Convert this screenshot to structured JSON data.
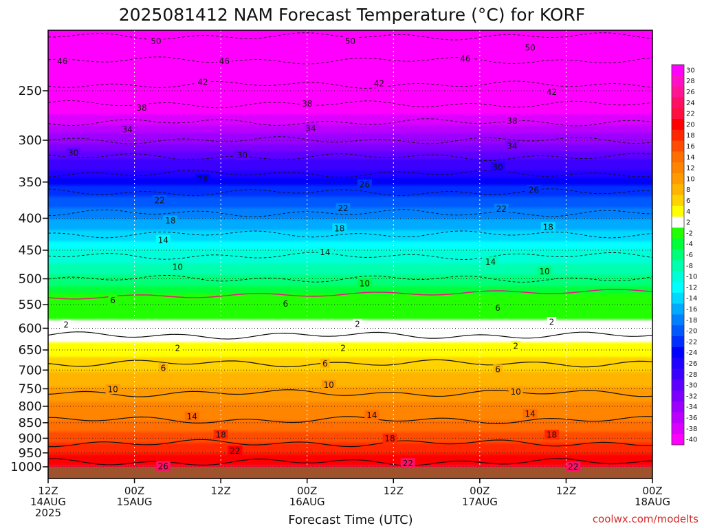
{
  "chart_data": {
    "type": "heatmap",
    "title": "2025081412 NAM Forecast Temperature (°C) for KORF",
    "xlabel": "Forecast Time (UTC)",
    "ylabel": "",
    "credit": "coolwx.com/modelts",
    "x_ticks": [
      {
        "hour": 0,
        "lines": [
          "12Z",
          "14AUG",
          "2025"
        ]
      },
      {
        "hour": 12,
        "lines": [
          "00Z",
          "15AUG"
        ]
      },
      {
        "hour": 24,
        "lines": [
          "12Z"
        ]
      },
      {
        "hour": 36,
        "lines": [
          "00Z",
          "16AUG"
        ]
      },
      {
        "hour": 48,
        "lines": [
          "12Z"
        ]
      },
      {
        "hour": 60,
        "lines": [
          "00Z",
          "17AUG"
        ]
      },
      {
        "hour": 72,
        "lines": [
          "12Z"
        ]
      },
      {
        "hour": 84,
        "lines": [
          "00Z",
          "18AUG"
        ]
      }
    ],
    "xlim": [
      0,
      84
    ],
    "y_ticks": [
      250,
      300,
      350,
      400,
      450,
      500,
      550,
      600,
      650,
      700,
      750,
      800,
      850,
      900,
      950,
      1000
    ],
    "ylim": [
      200,
      1000
    ],
    "y_scale": "log-pressure",
    "colorbar": {
      "labels": [
        30,
        28,
        26,
        24,
        22,
        20,
        18,
        16,
        14,
        12,
        10,
        8,
        6,
        4,
        2,
        -2,
        -4,
        -6,
        -8,
        -10,
        -12,
        -14,
        -16,
        -18,
        -20,
        -22,
        -24,
        -26,
        -28,
        -30,
        -32,
        -34,
        -36,
        -38,
        -40
      ],
      "colors": [
        "#ff00ff",
        "#ff10c8",
        "#ff1493",
        "#ff1064",
        "#ff1040",
        "#ff0000",
        "#ff2800",
        "#ff4c00",
        "#ff6e00",
        "#ff8400",
        "#ff9a00",
        "#ffb400",
        "#ffd200",
        "#ffff00",
        "#ffffff",
        "#22ff00",
        "#00ff3a",
        "#00ff78",
        "#00ffae",
        "#00ffd8",
        "#00ffff",
        "#00d8ff",
        "#00aaff",
        "#0080ff",
        "#0058ff",
        "#0030ff",
        "#0000ff",
        "#2000ff",
        "#3c00ff",
        "#5c00ff",
        "#7c00ff",
        "#9c00ff",
        "#bc00ff",
        "#dc00ff",
        "#ff00ff"
      ]
    },
    "ground_color": "#a0522d",
    "freezing_line_color": "#e8187a",
    "contour_interval": 4,
    "profile": [
      {
        "p": 200,
        "t": -53
      },
      {
        "p": 250,
        "t": -43
      },
      {
        "p": 300,
        "t": -32
      },
      {
        "p": 350,
        "t": -22
      },
      {
        "p": 400,
        "t": -15
      },
      {
        "p": 450,
        "t": -9
      },
      {
        "p": 500,
        "t": -4
      },
      {
        "p": 550,
        "t": 1.5
      },
      {
        "p": 600,
        "t": 3
      },
      {
        "p": 650,
        "t": 6
      },
      {
        "p": 700,
        "t": 9
      },
      {
        "p": 750,
        "t": 11.5
      },
      {
        "p": 800,
        "t": 13.5
      },
      {
        "p": 850,
        "t": 16.5
      },
      {
        "p": 900,
        "t": 19
      },
      {
        "p": 950,
        "t": 22
      },
      {
        "p": 1000,
        "t": 25
      }
    ],
    "contour_labels": [
      {
        "value": "50",
        "hour": 15,
        "p": 208
      },
      {
        "value": "50",
        "hour": 42,
        "p": 208
      },
      {
        "value": "50",
        "hour": 67,
        "p": 213
      },
      {
        "value": "46",
        "hour": 2,
        "p": 224
      },
      {
        "value": "46",
        "hour": 24.5,
        "p": 224
      },
      {
        "value": "46",
        "hour": 58,
        "p": 222
      },
      {
        "value": "42",
        "hour": 21.5,
        "p": 242
      },
      {
        "value": "42",
        "hour": 46,
        "p": 243
      },
      {
        "value": "42",
        "hour": 70,
        "p": 251
      },
      {
        "value": "38",
        "hour": 13,
        "p": 266
      },
      {
        "value": "38",
        "hour": 36,
        "p": 262
      },
      {
        "value": "38",
        "hour": 64.5,
        "p": 279
      },
      {
        "value": "34",
        "hour": 11,
        "p": 288
      },
      {
        "value": "34",
        "hour": 36.5,
        "p": 287
      },
      {
        "value": "34",
        "hour": 64.5,
        "p": 306
      },
      {
        "value": "30",
        "hour": 3.5,
        "p": 314
      },
      {
        "value": "30",
        "hour": 27,
        "p": 317
      },
      {
        "value": "30",
        "hour": 62.5,
        "p": 331
      },
      {
        "value": "26",
        "hour": 21.5,
        "p": 346
      },
      {
        "value": "26",
        "hour": 44,
        "p": 353
      },
      {
        "value": "26",
        "hour": 67.5,
        "p": 360
      },
      {
        "value": "22",
        "hour": 15.5,
        "p": 374
      },
      {
        "value": "22",
        "hour": 41,
        "p": 385
      },
      {
        "value": "22",
        "hour": 63,
        "p": 386
      },
      {
        "value": "18",
        "hour": 17,
        "p": 403
      },
      {
        "value": "18",
        "hour": 40.5,
        "p": 415
      },
      {
        "value": "18",
        "hour": 69.5,
        "p": 413
      },
      {
        "value": "14",
        "hour": 16,
        "p": 433
      },
      {
        "value": "14",
        "hour": 38.5,
        "p": 453
      },
      {
        "value": "14",
        "hour": 61.5,
        "p": 469
      },
      {
        "value": "10",
        "hour": 18,
        "p": 478
      },
      {
        "value": "10",
        "hour": 44,
        "p": 508
      },
      {
        "value": "10",
        "hour": 69,
        "p": 486
      },
      {
        "value": "6",
        "hour": 9,
        "p": 541
      },
      {
        "value": "6",
        "hour": 33,
        "p": 548
      },
      {
        "value": "6",
        "hour": 62.5,
        "p": 556
      },
      {
        "value": "2",
        "hour": 2.5,
        "p": 592
      },
      {
        "value": "2",
        "hour": 43,
        "p": 590
      },
      {
        "value": "2",
        "hour": 70,
        "p": 586
      },
      {
        "value": "2",
        "hour": 18,
        "p": 645
      },
      {
        "value": "2",
        "hour": 41,
        "p": 645
      },
      {
        "value": "2",
        "hour": 65,
        "p": 640
      },
      {
        "value": "6",
        "hour": 16,
        "p": 694
      },
      {
        "value": "6",
        "hour": 38.5,
        "p": 683
      },
      {
        "value": "6",
        "hour": 62.5,
        "p": 698
      },
      {
        "value": "10",
        "hour": 9,
        "p": 751
      },
      {
        "value": "10",
        "hour": 39,
        "p": 739
      },
      {
        "value": "10",
        "hour": 65,
        "p": 758
      },
      {
        "value": "14",
        "hour": 20,
        "p": 830
      },
      {
        "value": "14",
        "hour": 45,
        "p": 826
      },
      {
        "value": "14",
        "hour": 67,
        "p": 822
      },
      {
        "value": "18",
        "hour": 24,
        "p": 888
      },
      {
        "value": "18",
        "hour": 47.5,
        "p": 900
      },
      {
        "value": "18",
        "hour": 70,
        "p": 888
      },
      {
        "value": "22",
        "hour": 26,
        "p": 942
      },
      {
        "value": "22",
        "hour": 50,
        "p": 986
      },
      {
        "value": "22",
        "hour": 73,
        "p": 999
      },
      {
        "value": "26",
        "hour": 16,
        "p": 997
      }
    ]
  }
}
